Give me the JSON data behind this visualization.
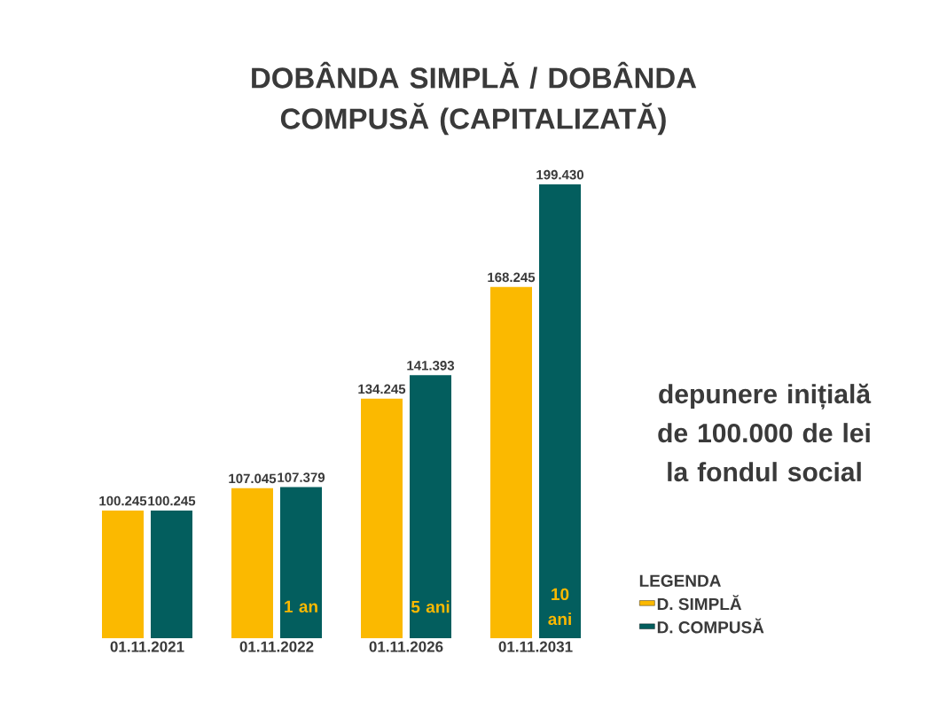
{
  "chart_data": {
    "type": "bar",
    "title": "DOBÂNDA SIMPLĂ / DOBÂNDA COMPUSĂ (CAPITALIZATĂ)",
    "categories": [
      "01.11.2021",
      "01.11.2022",
      "01.11.2026",
      "01.11.2031"
    ],
    "series": [
      {
        "name": "D. SIMPLĂ",
        "color": "#fbb900",
        "values": [
          100245,
          107045,
          134245,
          168245
        ],
        "value_labels": [
          "100.245",
          "107.045",
          "134.245",
          "168.245"
        ]
      },
      {
        "name": "D. COMPUSĂ",
        "color": "#035e5e",
        "values": [
          100245,
          107379,
          141393,
          199430
        ],
        "value_labels": [
          "100.245",
          "107.379",
          "141.393",
          "199.430"
        ]
      }
    ],
    "ylim": [
      61400,
      199430
    ],
    "legend": "bottom right",
    "legend_title": "LEGENDA",
    "annotations": [
      {
        "text": "1 an",
        "x": "01.11.2022",
        "y": 71000
      },
      {
        "text": "5 ani",
        "x": "01.11.2026",
        "y": 71000
      },
      {
        "text": "10 ani",
        "x": "01.11.2031",
        "y": 71000
      },
      "depunere inițială de 100.000 de lei la fondul social"
    ]
  }
}
